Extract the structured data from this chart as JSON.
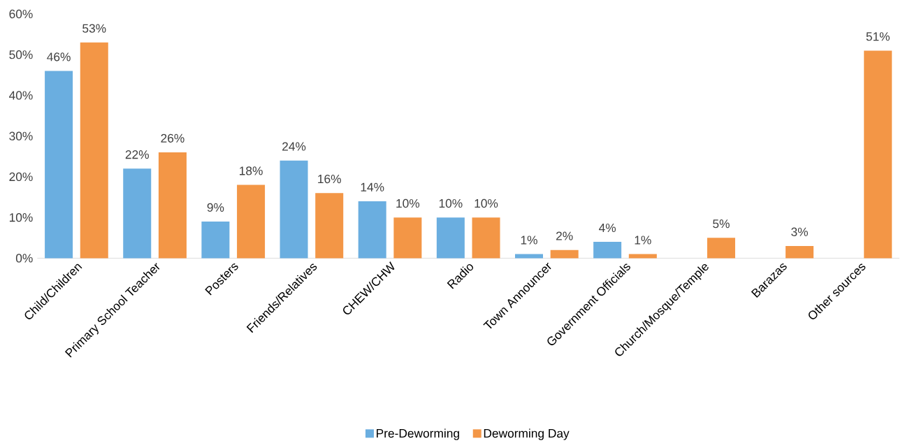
{
  "chart_data": {
    "type": "bar",
    "categories": [
      "Child/Children",
      "Primary School Teacher",
      "Posters",
      "Friends/Relatives",
      "CHEW/CHW",
      "Radio",
      "Town Announcer",
      "Government Officials",
      "Church/Mosque/Temple",
      "Barazas",
      "Other sources"
    ],
    "series": [
      {
        "name": "Pre-Deworming",
        "color": "#6aaee0",
        "values": [
          46,
          22,
          9,
          24,
          14,
          10,
          1,
          4,
          null,
          null,
          null
        ],
        "value_labels": [
          "46%",
          "22%",
          "9%",
          "24%",
          "14%",
          "10%",
          "1%",
          "4%",
          null,
          null,
          null
        ]
      },
      {
        "name": "Deworming Day",
        "color": "#f39646",
        "values": [
          53,
          26,
          18,
          16,
          10,
          10,
          2,
          1,
          5,
          3,
          51
        ],
        "value_labels": [
          "53%",
          "26%",
          "18%",
          "16%",
          "10%",
          "10%",
          "2%",
          "1%",
          "5%",
          "3%",
          "51%"
        ]
      }
    ],
    "ylim": [
      0,
      60
    ],
    "yticks": [
      {
        "value": 0,
        "label": "0%"
      },
      {
        "value": 10,
        "label": "10%"
      },
      {
        "value": 20,
        "label": "20%"
      },
      {
        "value": 30,
        "label": "30%"
      },
      {
        "value": 40,
        "label": "40%"
      },
      {
        "value": 50,
        "label": "50%"
      },
      {
        "value": 60,
        "label": "60%"
      }
    ],
    "grid": false,
    "legend": "bottom"
  }
}
